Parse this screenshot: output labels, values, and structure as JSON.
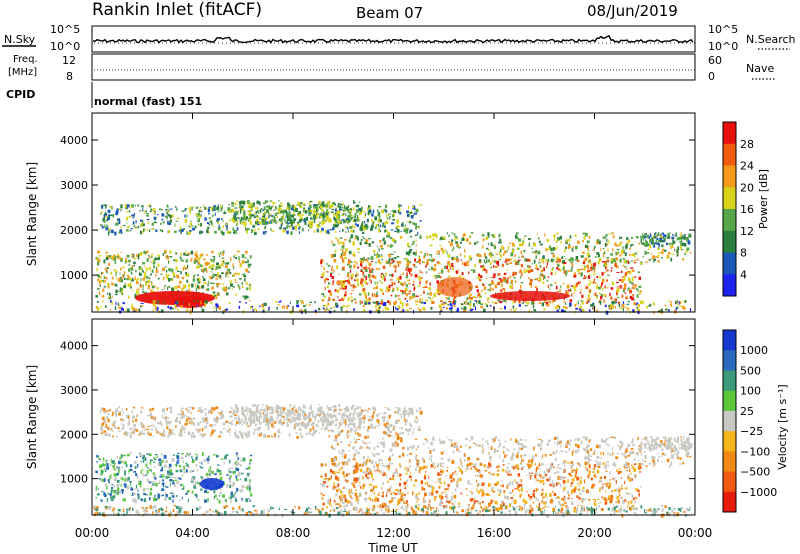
{
  "header": {
    "station": "Rankin Inlet (fitACF)",
    "beam": "Beam 07",
    "date": "08/Jun/2019"
  },
  "summary_panels": {
    "nsky_label": "N.Sky",
    "nsearch_label": "N.Search",
    "noise_tick_top_left": "10^5",
    "noise_tick_bottom_left": "10^0",
    "noise_tick_top_right": "10^5",
    "noise_tick_bottom_right": "10^0",
    "freq_label_1": "Freq.",
    "freq_label_2": "[MHz]",
    "freq_ticks": [
      "12",
      "8"
    ],
    "nave_ticks": [
      "60",
      "0"
    ],
    "nave_label": "Nave",
    "cpid_label": "CPID",
    "cpid_value": "normal (fast) 151"
  },
  "chart_data": [
    {
      "type": "heatmap",
      "title": "Power",
      "ylabel": "Slant Range [km]",
      "xlabel": "",
      "y_ticks": [
        "1000",
        "2000",
        "3000",
        "4000"
      ],
      "ylim": [
        180,
        4600
      ],
      "colorbar": {
        "label": "Power [dB]",
        "ticks": [
          "4",
          "8",
          "12",
          "16",
          "20",
          "24",
          "28"
        ],
        "colors": [
          "#1e22f0",
          "#1a58b8",
          "#2b7f3e",
          "#58a64a",
          "#d8d21a",
          "#f39a1c",
          "#f05a0c",
          "#e8100c"
        ]
      }
    },
    {
      "type": "heatmap",
      "title": "Velocity",
      "ylabel": "Slant Range [km]",
      "xlabel": "Time UT",
      "y_ticks": [
        "1000",
        "2000",
        "3000",
        "4000"
      ],
      "ylim": [
        180,
        4600
      ],
      "x_ticks": [
        "00:00",
        "04:00",
        "08:00",
        "12:00",
        "16:00",
        "20:00",
        "00:00"
      ],
      "colorbar": {
        "label": "Velocity [m s⁻¹]",
        "ticks": [
          "1000",
          "500",
          "100",
          "25",
          "−25",
          "−100",
          "−500",
          "−1000"
        ],
        "colors": [
          "#1438d0",
          "#2a6abd",
          "#3a9a7a",
          "#5ac83a",
          "#c8c8c2",
          "#f2b41a",
          "#f08a14",
          "#ef5a10",
          "#e81a0c"
        ]
      }
    }
  ]
}
